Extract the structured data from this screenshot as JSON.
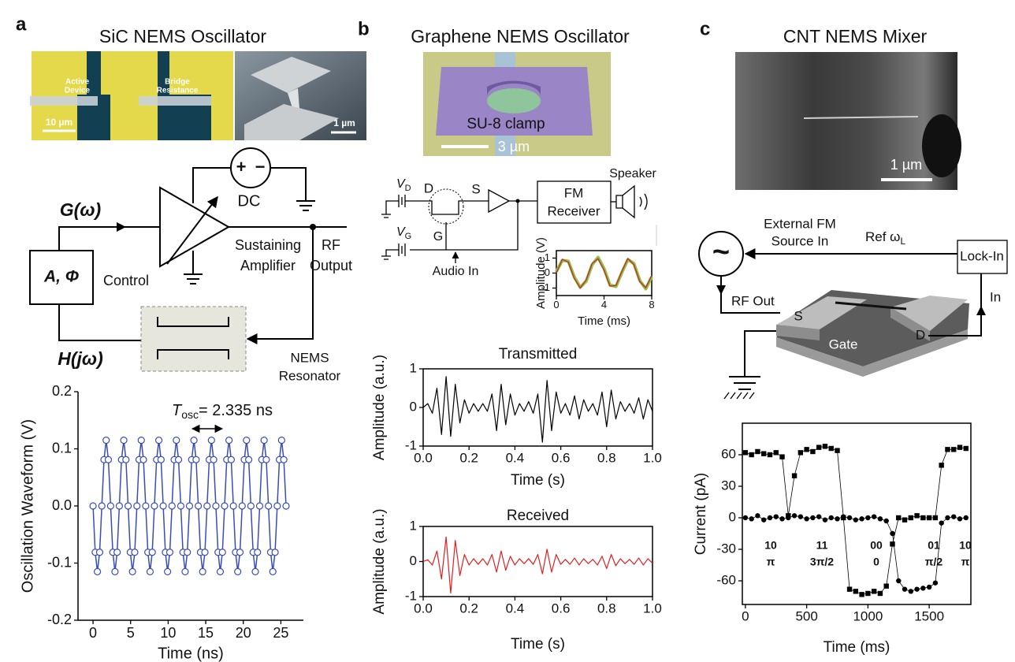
{
  "figure": {
    "panels": [
      {
        "label": "a",
        "title": "SiC NEMS Oscillator"
      },
      {
        "label": "b",
        "title": "Graphene NEMS Oscillator"
      },
      {
        "label": "c",
        "title": "CNT NEMS Mixer"
      }
    ],
    "micrographs": {
      "a_left": {
        "labels": [
          [
            "Active",
            "Device"
          ],
          [
            "Bridge",
            "Resistance"
          ]
        ],
        "scale": "10 µm"
      },
      "a_right": {
        "scale": "1 µm"
      },
      "b": {
        "label": "SU-8 clamp",
        "scale": "3 µm"
      },
      "c": {
        "scale": "1 µm"
      }
    },
    "circuit_a": {
      "gain": "G(ω)",
      "dc": "DC",
      "plus": "+",
      "minus": "−",
      "amplifier": [
        "Sustaining",
        "Amplifier"
      ],
      "output": [
        "RF",
        "Output"
      ],
      "control_box": "A, Φ",
      "control": "Control",
      "transfer": "H(jω)",
      "resonator": [
        "NEMS",
        "Resonator"
      ]
    },
    "circuit_b": {
      "vd": {
        "main": "V",
        "sub": "D"
      },
      "drain": "D",
      "source": "S",
      "receiver": [
        "FM",
        "Receiver"
      ],
      "speaker": "Speaker",
      "vg": {
        "main": "V",
        "sub": "G"
      },
      "gate": "G",
      "audio": "Audio In"
    },
    "circuit_c": {
      "source": [
        "External FM",
        "Source In"
      ],
      "symbol": "~",
      "ref": {
        "main": "Ref ω",
        "sub": "L"
      },
      "lockin": "Lock-In",
      "rf_out": "RF Out",
      "input": "In",
      "s": "S",
      "d": "D",
      "gate": "Gate"
    }
  },
  "chart_data": [
    {
      "type": "line",
      "y_label": "Oscillation Waveform (V)",
      "x_label": "Time (ns)",
      "annotation": {
        "main": "T",
        "sub": "osc",
        "rest": "= 2.335 ns"
      },
      "x": [
        0.0,
        0.29,
        0.58,
        0.88,
        1.17,
        1.46,
        1.75,
        2.04,
        2.34,
        2.63,
        2.92,
        3.21,
        3.5,
        3.79,
        4.09,
        4.38,
        4.67,
        4.96,
        5.25,
        5.55,
        5.84,
        6.13,
        6.42,
        6.71,
        7.01,
        7.3,
        7.59,
        7.88,
        8.17,
        8.46,
        8.76,
        9.05,
        9.34,
        9.63,
        9.92,
        10.22,
        10.51,
        10.8,
        11.09,
        11.38,
        11.68,
        11.97,
        12.26,
        12.55,
        12.84,
        13.13,
        13.43,
        13.72,
        14.01,
        14.3,
        14.59,
        14.89,
        15.18,
        15.47,
        15.76,
        16.05,
        16.35,
        16.64,
        16.93,
        17.22,
        17.51,
        17.8,
        18.1,
        18.39,
        18.68,
        18.97,
        19.26,
        19.56,
        19.85,
        20.14,
        20.43,
        20.72,
        21.01,
        21.31,
        21.6,
        21.89,
        22.18,
        22.47,
        22.77,
        23.06,
        23.35,
        23.64,
        23.93,
        24.23,
        24.52,
        24.81,
        25.1,
        25.39,
        25.69
      ],
      "series": [
        {
          "color": "#3a4db5",
          "marker": "circle",
          "values": [
            0,
            -0.081,
            -0.115,
            -0.081,
            0,
            0.081,
            0.115,
            0.081,
            0,
            -0.081,
            -0.115,
            -0.081,
            0,
            0.081,
            0.115,
            0.081,
            0,
            -0.081,
            -0.115,
            -0.081,
            0,
            0.081,
            0.115,
            0.081,
            0,
            -0.081,
            -0.115,
            -0.081,
            0,
            0.081,
            0.115,
            0.081,
            0,
            -0.081,
            -0.115,
            -0.081,
            0,
            0.081,
            0.115,
            0.081,
            0,
            -0.081,
            -0.115,
            -0.081,
            0,
            0.081,
            0.115,
            0.081,
            0,
            -0.081,
            -0.115,
            -0.081,
            0,
            0.081,
            0.115,
            0.081,
            0,
            -0.081,
            -0.115,
            -0.081,
            0,
            0.081,
            0.115,
            0.081,
            0,
            -0.081,
            -0.115,
            -0.081,
            0,
            0.081,
            0.115,
            0.081,
            0,
            -0.081,
            -0.115,
            -0.081,
            0,
            0.081,
            0.115,
            0.081,
            0,
            -0.081,
            -0.115,
            -0.081,
            0,
            0.081,
            0.115,
            0.081,
            0
          ]
        }
      ],
      "xlim": [
        -2,
        28
      ],
      "ylim": [
        -0.2,
        0.2
      ],
      "xticks": [
        0,
        5,
        10,
        15,
        20,
        25
      ],
      "yticks": [
        -0.2,
        -0.1,
        {
          "value": 0,
          "label": "0.0"
        },
        0.1,
        0.2
      ]
    },
    {
      "type": "line",
      "y_label": "Amplitude (V)",
      "x_label": "Time (ms)",
      "x": [
        0,
        0.5,
        1,
        1.5,
        2,
        2.5,
        3,
        3.5,
        4,
        4.5,
        5,
        5.5,
        6,
        6.5,
        7,
        7.5,
        8
      ],
      "series": [
        {
          "color": "#8fc34a",
          "width": 4,
          "values": [
            0.1,
            0.85,
            0.8,
            -0.25,
            -0.95,
            -0.55,
            0.55,
            1.05,
            0.3,
            -0.8,
            -0.9,
            0.05,
            0.9,
            0.65,
            -0.5,
            -1.05,
            -0.25
          ]
        },
        {
          "color": "#c0392b",
          "width": 1.5,
          "values": [
            0,
            0.92,
            0.73,
            -0.34,
            -1,
            -0.46,
            0.64,
            0.96,
            0.2,
            -0.87,
            -0.83,
            0.12,
            0.98,
            0.57,
            -0.57,
            -0.98,
            -0.16
          ]
        }
      ],
      "xlim": [
        0,
        8
      ],
      "ylim": [
        -1.5,
        1.5
      ],
      "xticks": [
        0,
        4,
        8
      ],
      "yticks": [
        -1,
        0,
        1
      ]
    },
    {
      "type": "line",
      "title": "Transmitted",
      "y_label": "Amplitude (a.u.)",
      "x_label": "Time (s)",
      "x": [
        0,
        0.02,
        0.04,
        0.06,
        0.08,
        0.1,
        0.12,
        0.14,
        0.16,
        0.18,
        0.2,
        0.22,
        0.24,
        0.26,
        0.28,
        0.3,
        0.32,
        0.34,
        0.36,
        0.38,
        0.4,
        0.42,
        0.44,
        0.46,
        0.48,
        0.5,
        0.52,
        0.54,
        0.56,
        0.58,
        0.6,
        0.62,
        0.64,
        0.66,
        0.68,
        0.7,
        0.72,
        0.74,
        0.76,
        0.78,
        0.8,
        0.82,
        0.84,
        0.86,
        0.88,
        0.9,
        0.92,
        0.94,
        0.96,
        0.98,
        1.0
      ],
      "series": [
        {
          "color": "#000000",
          "width": 1.2,
          "values": [
            0,
            0.1,
            -0.15,
            0.5,
            -0.7,
            0.8,
            -0.75,
            0.6,
            -0.4,
            0.2,
            -0.15,
            0.1,
            -0.1,
            0.1,
            -0.1,
            0.35,
            -0.6,
            0.6,
            -0.45,
            0.35,
            -0.2,
            0.1,
            -0.1,
            0.15,
            -0.15,
            0.35,
            -0.9,
            0.7,
            -0.6,
            0.4,
            -0.15,
            0.1,
            -0.2,
            0.3,
            -0.3,
            0.2,
            -0.1,
            0.1,
            -0.2,
            0.4,
            -0.5,
            0.45,
            -0.3,
            0.15,
            -0.1,
            0.1,
            -0.15,
            0.25,
            -0.3,
            0.2,
            -0.1
          ]
        }
      ],
      "xlim": [
        0,
        1
      ],
      "ylim": [
        -1,
        1
      ],
      "xticks": [
        {
          "value": 0,
          "label": "0.0"
        },
        0.2,
        0.4,
        0.6,
        0.8,
        {
          "value": 1,
          "label": "1.0"
        }
      ],
      "yticks": [
        -1,
        0,
        1
      ]
    },
    {
      "type": "line",
      "title": "Received",
      "y_label": "Amplitude (a.u.)",
      "x_label": "Time (s)",
      "x": [
        0,
        0.02,
        0.04,
        0.06,
        0.08,
        0.1,
        0.12,
        0.14,
        0.16,
        0.18,
        0.2,
        0.22,
        0.24,
        0.26,
        0.28,
        0.3,
        0.32,
        0.34,
        0.36,
        0.38,
        0.4,
        0.42,
        0.44,
        0.46,
        0.48,
        0.5,
        0.52,
        0.54,
        0.56,
        0.58,
        0.6,
        0.62,
        0.64,
        0.66,
        0.68,
        0.7,
        0.72,
        0.74,
        0.76,
        0.78,
        0.8,
        0.82,
        0.84,
        0.86,
        0.88,
        0.9,
        0.92,
        0.94,
        0.96,
        0.98,
        1.0
      ],
      "series": [
        {
          "color": "#e02020",
          "width": 1.2,
          "values": [
            0,
            0.05,
            -0.1,
            0.3,
            -0.5,
            0.7,
            -0.9,
            0.6,
            -0.4,
            0.2,
            -0.1,
            0.08,
            -0.08,
            0.08,
            -0.1,
            0.2,
            -0.3,
            0.3,
            -0.25,
            0.15,
            -0.1,
            0.08,
            -0.06,
            0.08,
            -0.08,
            0.2,
            -0.35,
            0.35,
            -0.3,
            0.2,
            -0.08,
            0.06,
            -0.08,
            0.1,
            -0.1,
            0.08,
            -0.06,
            0.06,
            -0.1,
            0.15,
            -0.2,
            0.2,
            -0.12,
            0.08,
            -0.06,
            0.06,
            -0.08,
            0.1,
            -0.1,
            0.08,
            -0.05
          ]
        }
      ],
      "xlim": [
        0,
        1
      ],
      "ylim": [
        -1,
        1
      ],
      "xticks": [
        {
          "value": 0,
          "label": "0.0"
        },
        0.2,
        0.4,
        0.6,
        0.8,
        {
          "value": 1,
          "label": "1.0"
        }
      ],
      "yticks": [
        -1,
        0,
        1
      ]
    },
    {
      "type": "line",
      "y_label": "Current (pA)",
      "x_label": "Time (ms)",
      "annotations": [
        {
          "top": "10",
          "bottom": "π"
        },
        {
          "top": "11",
          "bottom": "3π/2"
        },
        {
          "top": "00",
          "bottom": "0"
        },
        {
          "top": "01",
          "bottom": "π/2"
        },
        {
          "top": "10",
          "bottom": "π"
        }
      ],
      "x": [
        0,
        50,
        100,
        150,
        200,
        250,
        300,
        350,
        400,
        450,
        500,
        550,
        600,
        650,
        700,
        750,
        800,
        850,
        900,
        950,
        1000,
        1050,
        1100,
        1150,
        1200,
        1250,
        1300,
        1350,
        1400,
        1450,
        1500,
        1550,
        1600,
        1650,
        1700,
        1750,
        1800
      ],
      "series": [
        {
          "color": "#000000",
          "marker": "square",
          "width": 0.8,
          "values": [
            62,
            60,
            63,
            61,
            60,
            62,
            58,
            2,
            40,
            62,
            65,
            63,
            67,
            68,
            66,
            64,
            0,
            -68,
            -70,
            -73,
            -72,
            -70,
            -72,
            -65,
            -25,
            0,
            -2,
            0,
            2,
            0,
            0,
            0,
            50,
            65,
            65,
            67,
            66
          ]
        },
        {
          "color": "#000000",
          "marker": "dot",
          "width": 0.8,
          "values": [
            0,
            -1,
            2,
            -2,
            0,
            1,
            -1,
            0,
            2,
            1,
            -1,
            0,
            1,
            -2,
            0,
            -1,
            1,
            0,
            -2,
            -1,
            0,
            1,
            -1,
            -3,
            -15,
            -60,
            -68,
            -70,
            -68,
            -67,
            -66,
            -62,
            -5,
            0,
            1,
            -1,
            0
          ]
        }
      ],
      "xlim": [
        -25,
        1840
      ],
      "ylim": [
        -82.5,
        90
      ],
      "xticks": [
        0,
        500,
        1000,
        1500
      ],
      "yticks": [
        -60,
        -30,
        0,
        30,
        60
      ]
    }
  ]
}
